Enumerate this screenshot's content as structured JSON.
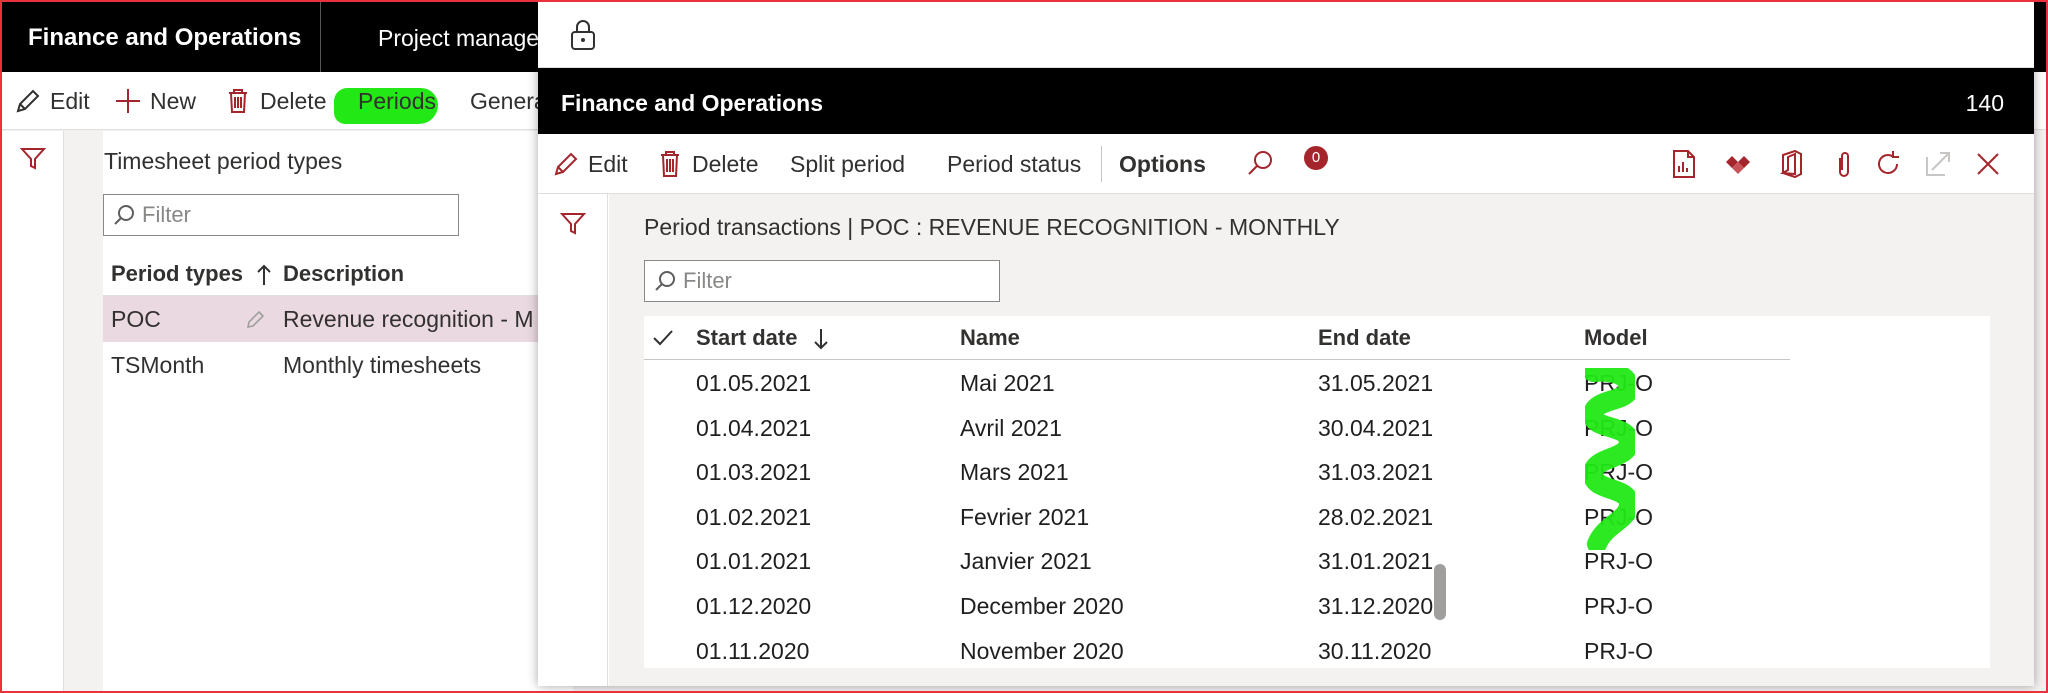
{
  "background_app": {
    "app_title": "Finance and Operations",
    "module": "Project manager",
    "actions": {
      "edit": "Edit",
      "new": "New",
      "delete": "Delete",
      "periods": "Periods",
      "general": "Genera"
    },
    "panel_title": "Timesheet period types",
    "filter_placeholder": "Filter",
    "columns": {
      "period_types": "Period types",
      "description": "Description"
    },
    "rows": [
      {
        "period_type": "POC",
        "description": "Revenue recognition - M"
      },
      {
        "period_type": "TSMonth",
        "description": "Monthly timesheets"
      }
    ]
  },
  "dialog": {
    "title": "Finance and Operations",
    "company": "140",
    "actions": {
      "edit": "Edit",
      "delete": "Delete",
      "split_period": "Split period",
      "period_status": "Period status",
      "options": "Options"
    },
    "attachment_count": "0",
    "caption": "Period transactions  |  POC : REVENUE RECOGNITION - MONTHLY",
    "filter_placeholder": "Filter",
    "columns": {
      "start_date": "Start date",
      "name": "Name",
      "end_date": "End date",
      "model": "Model"
    },
    "rows": [
      {
        "start_date": "01.05.2021",
        "name": "Mai 2021",
        "end_date": "31.05.2021",
        "model": "PRJ-O"
      },
      {
        "start_date": "01.04.2021",
        "name": "Avril 2021",
        "end_date": "30.04.2021",
        "model": "PRJ-O"
      },
      {
        "start_date": "01.03.2021",
        "name": "Mars 2021",
        "end_date": "31.03.2021",
        "model": "PRJ-O"
      },
      {
        "start_date": "01.02.2021",
        "name": "Fevrier 2021",
        "end_date": "28.02.2021",
        "model": "PRJ-O"
      },
      {
        "start_date": "01.01.2021",
        "name": "Janvier 2021",
        "end_date": "31.01.2021",
        "model": "PRJ-O"
      },
      {
        "start_date": "01.12.2020",
        "name": "December 2020",
        "end_date": "31.12.2020",
        "model": "PRJ-O"
      },
      {
        "start_date": "01.11.2020",
        "name": "November 2020",
        "end_date": "30.11.2020",
        "model": "PRJ-O"
      }
    ]
  },
  "colors": {
    "accent": "#a4262c",
    "highlight": "#22e816",
    "selected_row": "#ead9e1",
    "border": "#e8323c"
  }
}
